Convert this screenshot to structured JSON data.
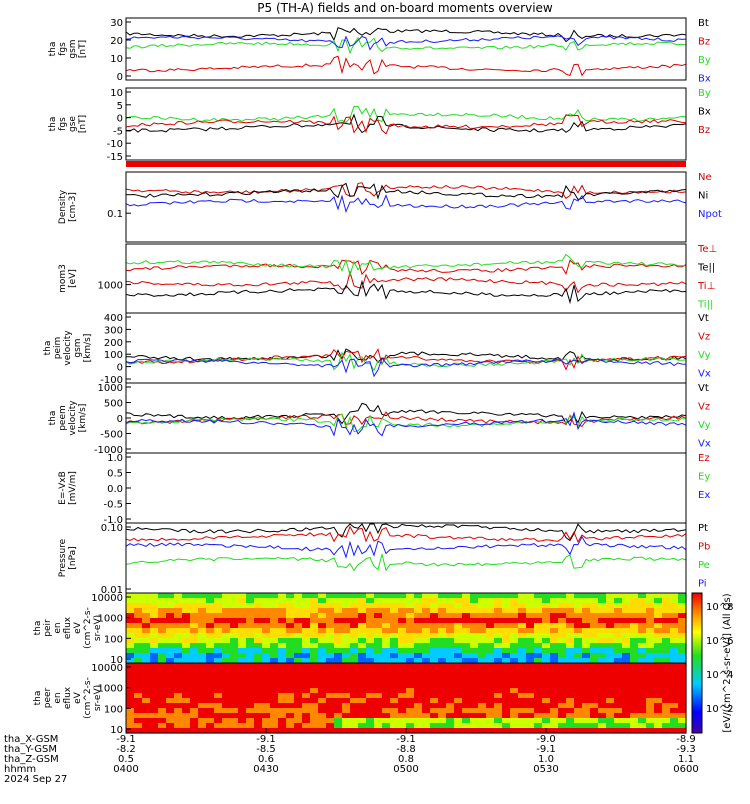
{
  "title": "P5 (TH-A) fields and on-board moments overview",
  "date_label": "2024 Sep 27",
  "colors": {
    "black": "#000000",
    "red": "#dd0000",
    "green": "#22dd22",
    "blue": "#1a1aff"
  },
  "chart_data": [
    {
      "type": "line",
      "panel": "fgs-gsm",
      "ylabel": [
        "tha",
        "fgs",
        "gsm",
        "[nT]"
      ],
      "yticks": [
        "30",
        "20",
        "10",
        "0"
      ],
      "series": [
        {
          "name": "Bt",
          "color": "black",
          "level": 0.25
        },
        {
          "name": "Bz",
          "color": "red",
          "level": 0.8
        },
        {
          "name": "By",
          "color": "green",
          "level": 0.45
        },
        {
          "name": "Bx",
          "color": "blue",
          "level": 0.35
        }
      ]
    },
    {
      "type": "line",
      "panel": "fgs-gse",
      "ylabel": [
        "tha",
        "fgs",
        "gse",
        "[nT]"
      ],
      "yticks": [
        "10",
        "5",
        "0",
        "-5",
        "-10",
        "-15"
      ],
      "series": [
        {
          "name": "By",
          "color": "green",
          "level": 0.4
        },
        {
          "name": "Bx",
          "color": "black",
          "level": 0.55
        },
        {
          "name": "Bz",
          "color": "red",
          "level": 0.5
        }
      ]
    },
    {
      "type": "line",
      "panel": "density",
      "ylabel": [
        "Density",
        "[cm-3]"
      ],
      "yticks": [
        "0.1"
      ],
      "series": [
        {
          "name": "Ne",
          "color": "red",
          "level": 0.25
        },
        {
          "name": "Ni",
          "color": "black",
          "level": 0.3
        },
        {
          "name": "Npot",
          "color": "blue",
          "level": 0.45
        }
      ]
    },
    {
      "type": "line",
      "panel": "temperature",
      "ylabel": [
        "mom3",
        "[eV]"
      ],
      "yticks": [
        "1000"
      ],
      "series": [
        {
          "name": "Te⊥",
          "color": "red",
          "level": 0.55
        },
        {
          "name": "Te||",
          "color": "black",
          "level": 0.7
        },
        {
          "name": "Ti⊥",
          "color": "red",
          "level": 0.35
        },
        {
          "name": "Ti||",
          "color": "green",
          "level": 0.3
        }
      ]
    },
    {
      "type": "line",
      "panel": "peim-velocity",
      "ylabel": [
        "tha",
        "peim",
        "velocity",
        "gsm",
        "[km/s]"
      ],
      "yticks": [
        "400",
        "300",
        "200",
        "100",
        "0",
        "-100"
      ],
      "series": [
        {
          "name": "Vt",
          "color": "black",
          "level": 0.62
        },
        {
          "name": "Vz",
          "color": "red",
          "level": 0.66
        },
        {
          "name": "Vy",
          "color": "green",
          "level": 0.7
        },
        {
          "name": "Vx",
          "color": "blue",
          "level": 0.72
        }
      ]
    },
    {
      "type": "line",
      "panel": "peem-velocity",
      "ylabel": [
        "tha",
        "peem",
        "velocity",
        "[km/s]"
      ],
      "yticks": [
        "1000",
        "500",
        "0",
        "-500",
        "-1000"
      ],
      "series": [
        {
          "name": "Vt",
          "color": "black",
          "level": 0.45
        },
        {
          "name": "Vz",
          "color": "red",
          "level": 0.52
        },
        {
          "name": "Vy",
          "color": "green",
          "level": 0.56
        },
        {
          "name": "Vx",
          "color": "blue",
          "level": 0.58
        }
      ]
    },
    {
      "type": "line",
      "panel": "efield",
      "ylabel": [
        "E=-VxB",
        "[mV/m]"
      ],
      "yticks": [
        "1.0",
        "0.5",
        "0.0",
        "-0.5",
        "-1.0"
      ],
      "series": [
        {
          "name": "Ez",
          "color": "red"
        },
        {
          "name": "Ey",
          "color": "green"
        },
        {
          "name": "Ex",
          "color": "blue"
        }
      ]
    },
    {
      "type": "line",
      "panel": "pressure",
      "ylabel": [
        "Pressure",
        "[nPa]"
      ],
      "yticks": [
        "0.10",
        "0.01"
      ],
      "series": [
        {
          "name": "Pt",
          "color": "black",
          "level": 0.08
        },
        {
          "name": "Pb",
          "color": "red",
          "level": 0.2
        },
        {
          "name": "Pe",
          "color": "green",
          "level": 0.55
        },
        {
          "name": "Pi",
          "color": "blue",
          "level": 0.35
        }
      ]
    },
    {
      "type": "heatmap",
      "panel": "peir-en-eflux",
      "ylabel": [
        "tha",
        "peir",
        "en",
        "eflux",
        "eV",
        "(cm^2-s-",
        "sr-eV)"
      ],
      "yticks": [
        "10000",
        "1000",
        "100",
        "10"
      ]
    },
    {
      "type": "heatmap",
      "panel": "peer-en-eflux",
      "ylabel": [
        "tha",
        "peer",
        "en",
        "eflux",
        "eV",
        "(cm^2-s-",
        "sr-eV)"
      ],
      "yticks": [
        "10000",
        "1000",
        "100",
        "10"
      ]
    }
  ],
  "colorbar": {
    "ticks": [
      "10^8",
      "10^6",
      "10^4",
      "10^2"
    ],
    "label": "[eV/(cm^2-s-sr-eV)] (All Qs)"
  },
  "x_axis": {
    "row_labels": [
      "tha_X-GSM",
      "tha_Y-GSM",
      "tha_Z-GSM",
      "hhmm",
      "2024 Sep 27"
    ],
    "columns": [
      {
        "x": "-9.1",
        "y": "-8.2",
        "z": "0.5",
        "time": "0400"
      },
      {
        "x": "-9.1",
        "y": "-8.5",
        "z": "0.6",
        "time": "0430"
      },
      {
        "x": "-9.1",
        "y": "-8.8",
        "z": "0.8",
        "time": "0500"
      },
      {
        "x": "-9.0",
        "y": "-9.1",
        "z": "1.0",
        "time": "0530"
      },
      {
        "x": "-8.9",
        "y": "-9.3",
        "z": "1.1",
        "time": "0600"
      }
    ]
  }
}
